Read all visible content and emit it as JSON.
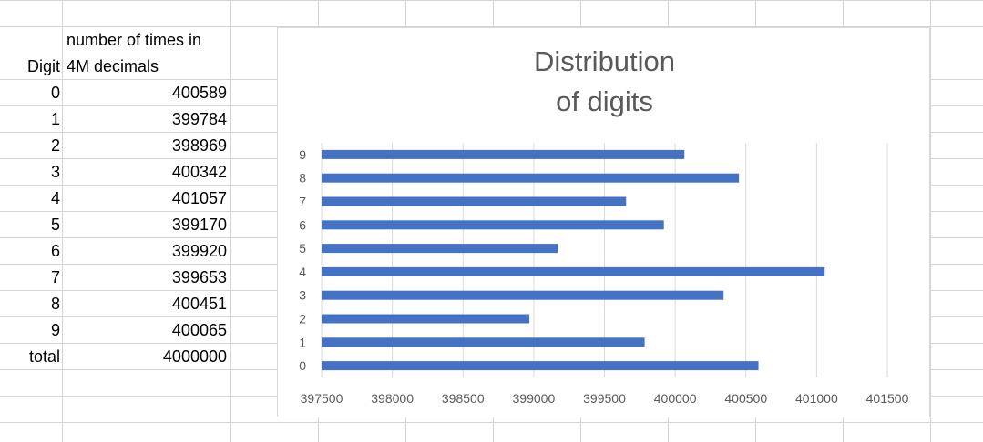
{
  "table": {
    "header_digit": "Digit",
    "header_count_line1": "number of times in",
    "header_count_line2": "4M decimals",
    "rows": [
      {
        "digit": "0",
        "count": "400589"
      },
      {
        "digit": "1",
        "count": "399784"
      },
      {
        "digit": "2",
        "count": "398969"
      },
      {
        "digit": "3",
        "count": "400342"
      },
      {
        "digit": "4",
        "count": "401057"
      },
      {
        "digit": "5",
        "count": "399170"
      },
      {
        "digit": "6",
        "count": "399920"
      },
      {
        "digit": "7",
        "count": "399653"
      },
      {
        "digit": "8",
        "count": "400451"
      },
      {
        "digit": "9",
        "count": "400065"
      }
    ],
    "total_label": "total",
    "total_value": "4000000"
  },
  "chart_data": {
    "type": "bar",
    "orientation": "horizontal",
    "title_line1": "Distribution",
    "title_line2": "of digits",
    "categories": [
      "0",
      "1",
      "2",
      "3",
      "4",
      "5",
      "6",
      "7",
      "8",
      "9"
    ],
    "values": [
      400589,
      399784,
      398969,
      400342,
      401057,
      399170,
      399920,
      399653,
      400451,
      400065
    ],
    "xlim": [
      397500,
      401500
    ],
    "xticks": [
      "397500",
      "398000",
      "398500",
      "399000",
      "399500",
      "400000",
      "400500",
      "401000",
      "401500"
    ],
    "grid": true,
    "bar_color": "#4472c4",
    "xlabel": "",
    "ylabel": ""
  }
}
